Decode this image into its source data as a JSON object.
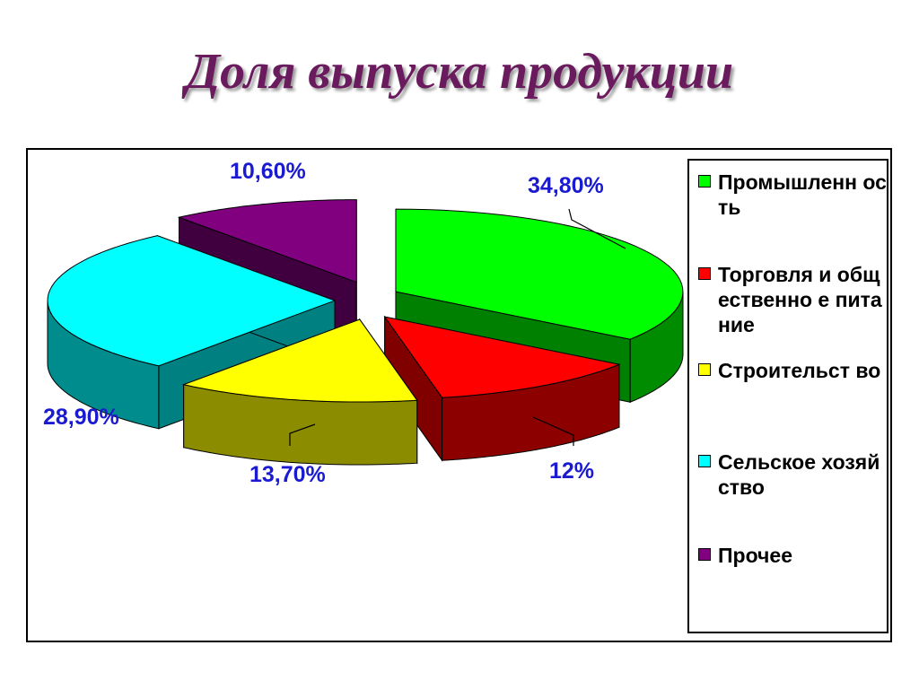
{
  "chart_data": {
    "type": "pie",
    "title": "Доля выпуска продукции",
    "legend_position": "right",
    "series": [
      {
        "slices": [
          {
            "name": "Промышленность",
            "legend_label": "Промышленн ость",
            "value": 34.8,
            "label": "34,80%",
            "color": "#00ff00"
          },
          {
            "name": "Торговля и общественное питание",
            "legend_label": "Торговля и общественно е питание",
            "value": 12.0,
            "label": "12%",
            "color": "#ff0000"
          },
          {
            "name": "Строительство",
            "legend_label": "Строительст во",
            "value": 13.7,
            "label": "13,70%",
            "color": "#ffff00"
          },
          {
            "name": "Сельское хозяйство",
            "legend_label": "Сельское хозяйство",
            "value": 28.9,
            "label": "28,90%",
            "color": "#00ffff"
          },
          {
            "name": "Прочее",
            "legend_label": "Прочее",
            "value": 10.6,
            "label": "10,60%",
            "color": "#800080"
          }
        ]
      }
    ]
  }
}
